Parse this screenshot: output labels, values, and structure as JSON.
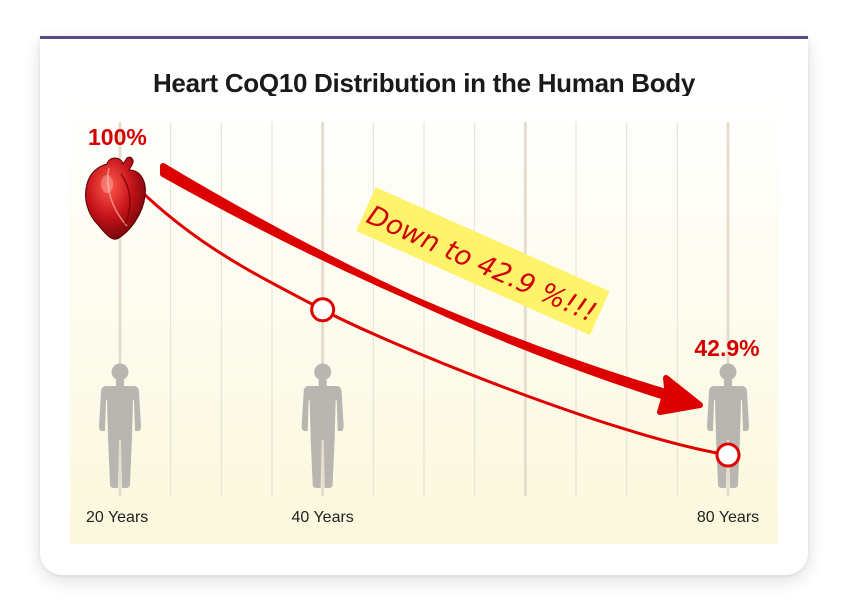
{
  "chart_data": {
    "type": "line",
    "title": "Heart CoQ10 Distribution in the Human Body",
    "xlabel": "",
    "ylabel": "",
    "categories": [
      "20 Years",
      "40 Years",
      "80 Years"
    ],
    "x": [
      20,
      40,
      80
    ],
    "series": [
      {
        "values": [
          100,
          72,
          42.9
        ],
        "color": "#e00000"
      }
    ],
    "data_labels": [
      "100%",
      "",
      "42.9%"
    ],
    "annotation": "Down to 42.9 %!!!",
    "xlim": [
      20,
      80
    ],
    "ylim": [
      30,
      100
    ],
    "grid": true,
    "legend": "none",
    "icons": [
      "heart-icon",
      "human-figure-icon"
    ],
    "colors": {
      "line": "#e00000",
      "arrow": "#dd0000",
      "note_bg": "#fff36b",
      "figure": "#b9b6b1",
      "plot_bg": "#fdfbe6"
    }
  }
}
